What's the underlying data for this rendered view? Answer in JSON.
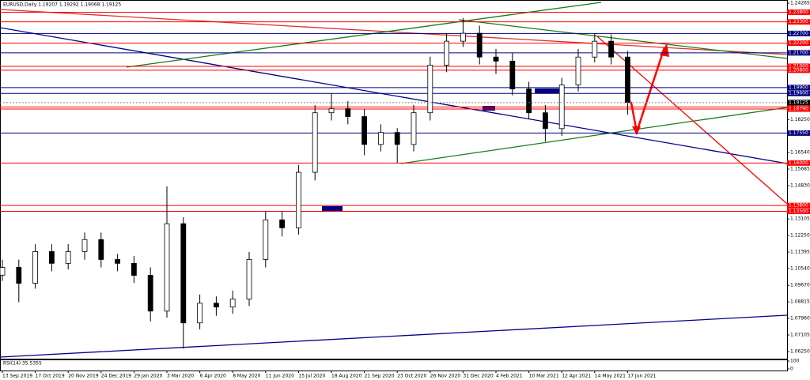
{
  "chart_data": {
    "type": "candlestick",
    "title": "EURUSD,Daily 1.19207 1.19292 1.19068 1.19125",
    "categories": [
      "13 Sep 2019",
      null,
      "17 Oct 2019",
      null,
      "20 Nov 2019",
      null,
      "24 Dec 2019",
      null,
      "29 Jan 2020",
      null,
      "3 Mar 2020",
      null,
      "6 Apr 2020",
      null,
      "8 May 2020",
      null,
      "11 Jun 2020",
      null,
      "15 Jul 2020",
      null,
      "18 Aug 2020",
      null,
      "21 Sep 2020",
      null,
      "23 Oct 2020",
      null,
      "26 Nov 2020",
      null,
      "31 Dec 2020",
      null,
      "4 Feb 2021",
      null,
      "10 Mar 2021",
      null,
      "12 Apr 2021",
      null,
      "14 May 2021",
      null,
      "17 Jun 2021"
    ],
    "open": [
      1.102,
      1.106,
      1.0978,
      1.1142,
      1.1081,
      1.1142,
      1.1204,
      1.1101,
      1.1081,
      1.1019,
      1.0834,
      1.1286,
      1.0773,
      1.0875,
      1.0855,
      1.0896,
      1.1101,
      1.1306,
      1.1265,
      1.1552,
      1.186,
      1.1881,
      1.184,
      1.1696,
      1.1758,
      1.1696,
      1.186,
      1.2106,
      1.223,
      1.2271,
      1.2148,
      1.2127,
      1.1983,
      1.186,
      1.1778,
      1.2004,
      1.2148,
      1.223,
      1.2148
    ],
    "high": [
      1.11,
      1.11,
      1.118,
      1.118,
      1.118,
      1.124,
      1.124,
      1.113,
      1.112,
      1.106,
      1.148,
      1.132,
      1.092,
      1.091,
      1.094,
      1.114,
      1.135,
      1.135,
      1.159,
      1.19,
      1.196,
      1.192,
      1.188,
      1.18,
      1.178,
      1.19,
      1.215,
      1.227,
      1.235,
      1.231,
      1.219,
      1.217,
      1.202,
      1.19,
      1.204,
      1.219,
      1.227,
      1.2265,
      1.218
    ],
    "low": [
      1.099,
      1.088,
      1.095,
      1.104,
      1.105,
      1.11,
      1.106,
      1.104,
      1.098,
      1.078,
      1.08,
      1.064,
      1.074,
      1.081,
      1.082,
      1.086,
      1.106,
      1.122,
      1.123,
      1.151,
      1.182,
      1.18,
      1.164,
      1.166,
      1.16,
      1.166,
      1.182,
      1.207,
      1.22,
      1.211,
      1.206,
      1.195,
      1.183,
      1.171,
      1.174,
      1.197,
      1.212,
      1.211,
      1.185
    ],
    "close": [
      1.106,
      1.0978,
      1.1142,
      1.1081,
      1.1142,
      1.1204,
      1.1101,
      1.1081,
      1.1019,
      1.0834,
      1.1286,
      1.0773,
      1.0875,
      1.0855,
      1.0896,
      1.1101,
      1.1306,
      1.1265,
      1.1552,
      1.186,
      1.1881,
      1.184,
      1.1696,
      1.1758,
      1.1696,
      1.186,
      1.2106,
      1.223,
      1.2271,
      1.2148,
      1.2127,
      1.1983,
      1.186,
      1.1778,
      1.2004,
      1.2148,
      1.223,
      1.2148,
      1.1913
    ],
    "color": "#000000",
    "ylim": [
      1.0588,
      1.2439
    ],
    "yticks": [
      {
        "value": 1.0625,
        "label": "1.06250"
      },
      1.07105,
      {
        "value": 1.0796,
        "label": "1.07960"
      },
      1.08815,
      {
        "value": 1.0967,
        "label": "1.09670"
      },
      {
        "value": 1.1054,
        "label": "1.10540"
      },
      1.11395,
      {
        "value": 1.1225,
        "label": "1.12250"
      },
      1.13105,
      {
        "value": 1.1483,
        "label": "1.14830"
      },
      1.15685,
      {
        "value": 1.1654,
        "label": "1.16540"
      },
      {
        "value": 1.1825,
        "label": "1.18250"
      },
      1.24265
    ],
    "levels": [
      {
        "value": 1.238,
        "label": "1.23800",
        "color": "#ff0000"
      },
      {
        "value": 1.233,
        "label": "1.23300",
        "color": "#ff0000"
      },
      {
        "value": 1.227,
        "label": "1.22700",
        "color": "#000080"
      },
      {
        "value": 1.222,
        "label": "1.22200",
        "color": "#ff0000"
      },
      {
        "value": 1.217,
        "label": "1.21700",
        "color": "#000080"
      },
      {
        "value": 1.21,
        "label": "1.21000",
        "color": "#ff0000"
      },
      {
        "value": 1.208,
        "label": "1.20800",
        "color": "#ff0000"
      },
      {
        "value": 1.199,
        "label": "1.19900",
        "color": "#000080"
      },
      {
        "value": 1.196,
        "label": "1.19600",
        "color": "#000080"
      },
      {
        "value": 1.189,
        "label": "1.18900",
        "color": "#ff0000"
      },
      {
        "value": 1.1879,
        "label": "1.18790",
        "color": "#ff0000"
      },
      {
        "value": 1.1755,
        "label": "1.17550",
        "color": "#000080"
      },
      {
        "value": 1.16,
        "label": "1.16000",
        "color": "#ff0000"
      },
      {
        "value": 1.138,
        "label": "1.13800",
        "color": "#ff0000"
      },
      {
        "value": 1.135,
        "label": "1.13500",
        "color": "#ff0000"
      }
    ],
    "current_price": {
      "value": 1.19125,
      "label": "1.19125"
    },
    "rsi": {
      "label": "RSI(14) 35.5355",
      "yticks": [
        100,
        0
      ]
    }
  }
}
